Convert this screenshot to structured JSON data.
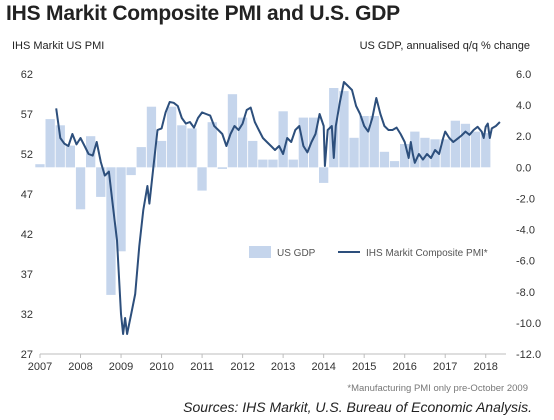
{
  "title": "IHS Markit Composite PMI and U.S. GDP",
  "left_axis_label": "IHS Markit US PMI",
  "right_axis_label": "US GDP, annualised q/q % change",
  "footnote": "*Manufacturing PMI only pre-October 2009",
  "source": "Sources:  IHS Markit, U.S. Bureau of Economic Analysis.",
  "colors": {
    "gdp_bar": "#c5d5ec",
    "pmi_line": "#2d4f7c",
    "axis": "#bdbdbd"
  },
  "chart_data": {
    "type": "bar+line",
    "x_ticks": [
      "2007",
      "2008",
      "2009",
      "2010",
      "2011",
      "2012",
      "2013",
      "2014",
      "2015",
      "2016",
      "2017",
      "2018"
    ],
    "left_axis": {
      "min": 27,
      "max": 62,
      "ticks": [
        27,
        32,
        37,
        42,
        47,
        52,
        57,
        62
      ]
    },
    "right_axis": {
      "min": -12.0,
      "max": 6.0,
      "ticks": [
        "6.0",
        "4.0",
        "2.0",
        "0.0",
        "-2.0",
        "-4.0",
        "-6.0",
        "-8.0",
        "-10.0",
        "-12.0"
      ]
    },
    "legend": {
      "placement": "lower-right",
      "entries": [
        "US GDP",
        "IHS Markit Composite PMI*"
      ]
    },
    "series": [
      {
        "name": "US GDP",
        "type": "bar",
        "axis": "right",
        "points": [
          [
            2007.0,
            0.2
          ],
          [
            2007.25,
            3.1
          ],
          [
            2007.5,
            2.7
          ],
          [
            2007.75,
            1.4
          ],
          [
            2008.0,
            -2.7
          ],
          [
            2008.25,
            2.0
          ],
          [
            2008.5,
            -1.9
          ],
          [
            2008.75,
            -8.2
          ],
          [
            2009.0,
            -5.4
          ],
          [
            2009.25,
            -0.5
          ],
          [
            2009.5,
            1.3
          ],
          [
            2009.75,
            3.9
          ],
          [
            2010.0,
            1.7
          ],
          [
            2010.25,
            3.9
          ],
          [
            2010.5,
            2.7
          ],
          [
            2010.75,
            2.5
          ],
          [
            2011.0,
            -1.5
          ],
          [
            2011.25,
            2.9
          ],
          [
            2011.5,
            -0.1
          ],
          [
            2011.75,
            4.7
          ],
          [
            2012.0,
            3.2
          ],
          [
            2012.25,
            1.7
          ],
          [
            2012.5,
            0.5
          ],
          [
            2012.75,
            0.5
          ],
          [
            2013.0,
            3.6
          ],
          [
            2013.25,
            0.5
          ],
          [
            2013.5,
            3.2
          ],
          [
            2013.75,
            3.2
          ],
          [
            2014.0,
            -1.0
          ],
          [
            2014.25,
            5.1
          ],
          [
            2014.5,
            4.9
          ],
          [
            2014.75,
            1.9
          ],
          [
            2015.0,
            3.3
          ],
          [
            2015.25,
            3.3
          ],
          [
            2015.5,
            1.0
          ],
          [
            2015.75,
            0.4
          ],
          [
            2016.0,
            1.5
          ],
          [
            2016.25,
            2.3
          ],
          [
            2016.5,
            1.9
          ],
          [
            2016.75,
            1.8
          ],
          [
            2017.0,
            1.8
          ],
          [
            2017.25,
            3.0
          ],
          [
            2017.5,
            2.8
          ],
          [
            2017.75,
            2.3
          ],
          [
            2018.0,
            2.2
          ]
        ]
      },
      {
        "name": "IHS Markit Composite PMI*",
        "type": "line",
        "axis": "left",
        "points": [
          [
            2007.4,
            57.7
          ],
          [
            2007.5,
            54.0
          ],
          [
            2007.6,
            53.3
          ],
          [
            2007.7,
            53.0
          ],
          [
            2007.8,
            54.5
          ],
          [
            2007.9,
            53.2
          ],
          [
            2008.0,
            54.0
          ],
          [
            2008.1,
            53.0
          ],
          [
            2008.2,
            52.0
          ],
          [
            2008.3,
            51.8
          ],
          [
            2008.4,
            53.5
          ],
          [
            2008.5,
            51.0
          ],
          [
            2008.6,
            49.3
          ],
          [
            2008.7,
            49.8
          ],
          [
            2008.8,
            45.5
          ],
          [
            2008.9,
            41.2
          ],
          [
            2009.0,
            32.0
          ],
          [
            2009.05,
            29.5
          ],
          [
            2009.1,
            31.5
          ],
          [
            2009.15,
            29.5
          ],
          [
            2009.25,
            32.0
          ],
          [
            2009.35,
            34.5
          ],
          [
            2009.45,
            40.5
          ],
          [
            2009.55,
            45.0
          ],
          [
            2009.65,
            48.0
          ],
          [
            2009.7,
            45.8
          ],
          [
            2009.8,
            50.5
          ],
          [
            2009.9,
            55.0
          ],
          [
            2010.0,
            55.2
          ],
          [
            2010.1,
            57.2
          ],
          [
            2010.2,
            58.5
          ],
          [
            2010.3,
            58.4
          ],
          [
            2010.4,
            58.0
          ],
          [
            2010.5,
            56.5
          ],
          [
            2010.6,
            55.8
          ],
          [
            2010.7,
            56.0
          ],
          [
            2010.8,
            55.3
          ],
          [
            2010.9,
            56.5
          ],
          [
            2011.0,
            57.2
          ],
          [
            2011.1,
            57.0
          ],
          [
            2011.2,
            56.8
          ],
          [
            2011.3,
            55.5
          ],
          [
            2011.4,
            55.0
          ],
          [
            2011.5,
            54.5
          ],
          [
            2011.6,
            53.0
          ],
          [
            2011.7,
            54.5
          ],
          [
            2011.8,
            55.5
          ],
          [
            2011.9,
            55.0
          ],
          [
            2012.0,
            55.8
          ],
          [
            2012.1,
            57.5
          ],
          [
            2012.2,
            57.8
          ],
          [
            2012.3,
            56.0
          ],
          [
            2012.4,
            55.0
          ],
          [
            2012.5,
            54.0
          ],
          [
            2012.6,
            53.5
          ],
          [
            2012.7,
            53.0
          ],
          [
            2012.8,
            52.5
          ],
          [
            2012.9,
            53.0
          ],
          [
            2013.0,
            52.0
          ],
          [
            2013.1,
            54.0
          ],
          [
            2013.2,
            53.5
          ],
          [
            2013.3,
            55.0
          ],
          [
            2013.4,
            55.5
          ],
          [
            2013.5,
            53.0
          ],
          [
            2013.6,
            52.2
          ],
          [
            2013.7,
            53.5
          ],
          [
            2013.8,
            54.5
          ],
          [
            2013.9,
            57.0
          ],
          [
            2014.0,
            55.5
          ],
          [
            2014.03,
            50.5
          ],
          [
            2014.1,
            55.0
          ],
          [
            2014.2,
            55.5
          ],
          [
            2014.25,
            51.5
          ],
          [
            2014.3,
            55.5
          ],
          [
            2014.4,
            58.5
          ],
          [
            2014.5,
            61.0
          ],
          [
            2014.6,
            60.5
          ],
          [
            2014.7,
            60.0
          ],
          [
            2014.8,
            58.0
          ],
          [
            2014.9,
            57.0
          ],
          [
            2015.0,
            55.5
          ],
          [
            2015.1,
            54.8
          ],
          [
            2015.2,
            56.5
          ],
          [
            2015.3,
            59.0
          ],
          [
            2015.4,
            57.0
          ],
          [
            2015.5,
            55.5
          ],
          [
            2015.6,
            55.0
          ],
          [
            2015.7,
            55.0
          ],
          [
            2015.8,
            55.3
          ],
          [
            2015.9,
            54.5
          ],
          [
            2016.0,
            53.5
          ],
          [
            2016.1,
            51.5
          ],
          [
            2016.15,
            53.5
          ],
          [
            2016.2,
            52.0
          ],
          [
            2016.25,
            50.9
          ],
          [
            2016.35,
            52.0
          ],
          [
            2016.45,
            51.3
          ],
          [
            2016.55,
            52.0
          ],
          [
            2016.65,
            51.5
          ],
          [
            2016.75,
            52.5
          ],
          [
            2016.85,
            52.0
          ],
          [
            2016.95,
            54.0
          ],
          [
            2017.0,
            54.8
          ],
          [
            2017.1,
            54.0
          ],
          [
            2017.2,
            53.5
          ],
          [
            2017.3,
            53.9
          ],
          [
            2017.4,
            54.3
          ],
          [
            2017.5,
            54.8
          ],
          [
            2017.6,
            54.4
          ],
          [
            2017.7,
            55.0
          ],
          [
            2017.8,
            55.4
          ],
          [
            2017.9,
            54.8
          ],
          [
            2017.95,
            54.0
          ],
          [
            2018.0,
            55.4
          ],
          [
            2018.05,
            55.8
          ],
          [
            2018.1,
            54.0
          ],
          [
            2018.15,
            55.2
          ],
          [
            2018.25,
            55.5
          ],
          [
            2018.35,
            56.0
          ]
        ]
      }
    ]
  }
}
